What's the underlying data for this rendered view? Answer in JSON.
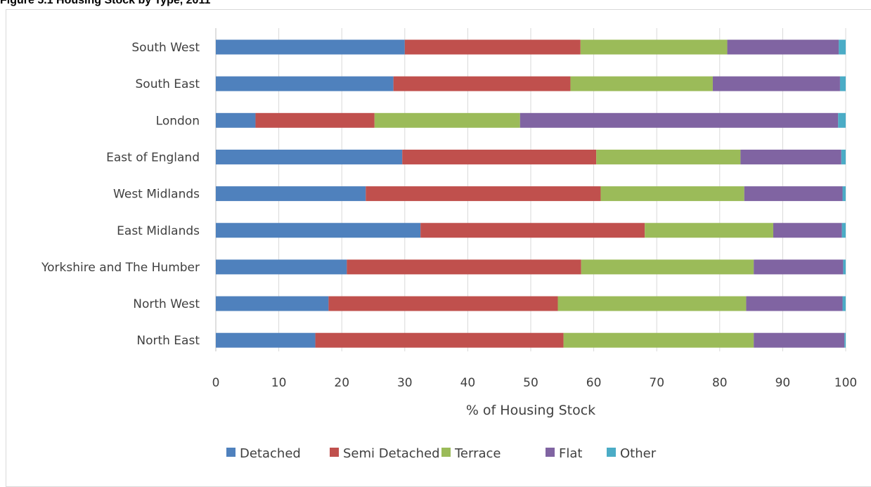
{
  "figure_title": "Figure 5.1 Housing Stock by Type, 2011",
  "chart_data": {
    "type": "bar",
    "orientation": "horizontal",
    "stacked": true,
    "title": "Figure 5.1 Housing Stock by Type, 2011",
    "xlabel": "% of Housing Stock",
    "ylabel": "",
    "xlim": [
      0,
      100
    ],
    "xticks": [
      0,
      10,
      20,
      30,
      40,
      50,
      60,
      70,
      80,
      90,
      100
    ],
    "grid": "vertical",
    "legend": "bottom",
    "categories": [
      "South West",
      "South East",
      "London",
      "East of England",
      "West Midlands",
      "East Midlands",
      "Yorkshire and The Humber",
      "North West",
      "North East"
    ],
    "series": [
      {
        "name": "Detached",
        "color": "#4f81bd",
        "values": [
          30.0,
          28.2,
          6.3,
          29.6,
          23.8,
          32.5,
          20.8,
          17.9,
          15.8
        ]
      },
      {
        "name": "Semi Detached",
        "color": "#c0504d",
        "values": [
          27.9,
          28.1,
          18.9,
          30.8,
          37.3,
          35.6,
          37.2,
          36.4,
          39.4
        ]
      },
      {
        "name": "Terrace",
        "color": "#9bbb59",
        "values": [
          23.3,
          22.6,
          23.1,
          22.9,
          22.8,
          20.4,
          27.4,
          29.9,
          30.2
        ]
      },
      {
        "name": "Flat",
        "color": "#8064a2",
        "values": [
          17.7,
          20.2,
          50.5,
          16.0,
          15.6,
          10.9,
          14.2,
          15.3,
          14.4
        ]
      },
      {
        "name": "Other",
        "color": "#4bacc6",
        "values": [
          1.1,
          0.9,
          1.2,
          0.7,
          0.5,
          0.6,
          0.4,
          0.5,
          0.2
        ]
      }
    ]
  }
}
